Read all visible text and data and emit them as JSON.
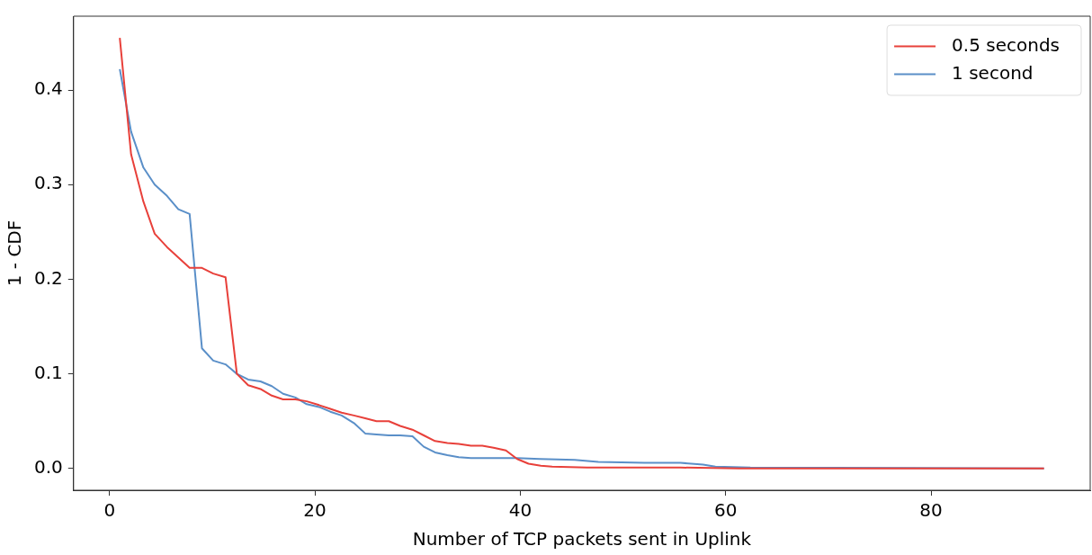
{
  "chart_data": {
    "type": "line",
    "xlabel": "Number of TCP packets sent in Uplink",
    "ylabel": "1 - CDF",
    "xlim": [
      -3.5,
      95.5
    ],
    "ylim": [
      -0.023,
      0.478
    ],
    "xticks": [
      0,
      20,
      40,
      60,
      80
    ],
    "yticks": [
      {
        "value": 0,
        "label": "0.0"
      },
      {
        "value": 0.1,
        "label": "0.1"
      },
      {
        "value": 0.2,
        "label": "0.2"
      },
      {
        "value": 0.3,
        "label": "0.3"
      },
      {
        "value": 0.4,
        "label": "0.4"
      }
    ],
    "grid": false,
    "legend": "top right",
    "marker": "none",
    "line_style": "solid",
    "series": [
      {
        "name": "0.5 seconds",
        "color": "#e8403a",
        "x": [
          1.0,
          2.1,
          3.3,
          4.4,
          5.6,
          6.7,
          7.8,
          9.0,
          10.1,
          11.3,
          12.4,
          13.5,
          14.7,
          15.8,
          16.9,
          18.1,
          19.2,
          20.4,
          21.5,
          22.6,
          23.8,
          24.9,
          26.0,
          27.2,
          28.3,
          29.5,
          30.6,
          31.7,
          32.9,
          34.0,
          35.2,
          36.3,
          37.4,
          38.6,
          39.7,
          40.8,
          42.0,
          43.1,
          46.5,
          55.6,
          61.3,
          91.0
        ],
        "values": [
          0.455,
          0.332,
          0.282,
          0.248,
          0.234,
          0.223,
          0.212,
          0.212,
          0.206,
          0.202,
          0.1,
          0.088,
          0.084,
          0.077,
          0.073,
          0.073,
          0.071,
          0.067,
          0.063,
          0.059,
          0.056,
          0.053,
          0.05,
          0.05,
          0.045,
          0.041,
          0.035,
          0.029,
          0.027,
          0.026,
          0.024,
          0.024,
          0.022,
          0.019,
          0.01,
          0.005,
          0.003,
          0.002,
          0.001,
          0.001,
          0,
          0
        ]
      },
      {
        "name": "1 second",
        "color": "#5a8fc8",
        "x": [
          1.0,
          2.1,
          3.3,
          4.4,
          5.6,
          6.7,
          7.8,
          9.0,
          10.1,
          11.3,
          12.4,
          13.5,
          14.7,
          15.8,
          16.9,
          18.1,
          19.2,
          20.4,
          21.5,
          22.6,
          23.8,
          24.9,
          26.0,
          27.2,
          28.3,
          29.5,
          30.6,
          31.7,
          32.9,
          34.0,
          35.2,
          39.7,
          41.9,
          45.3,
          47.6,
          52.1,
          55.6,
          57.8,
          59.0,
          62.4,
          91.0
        ],
        "values": [
          0.422,
          0.356,
          0.318,
          0.3,
          0.288,
          0.274,
          0.269,
          0.127,
          0.114,
          0.11,
          0.1,
          0.094,
          0.092,
          0.087,
          0.079,
          0.075,
          0.068,
          0.065,
          0.06,
          0.056,
          0.048,
          0.037,
          0.036,
          0.035,
          0.035,
          0.034,
          0.023,
          0.017,
          0.014,
          0.012,
          0.011,
          0.011,
          0.01,
          0.009,
          0.007,
          0.006,
          0.006,
          0.004,
          0.002,
          0.001,
          0
        ]
      }
    ]
  }
}
